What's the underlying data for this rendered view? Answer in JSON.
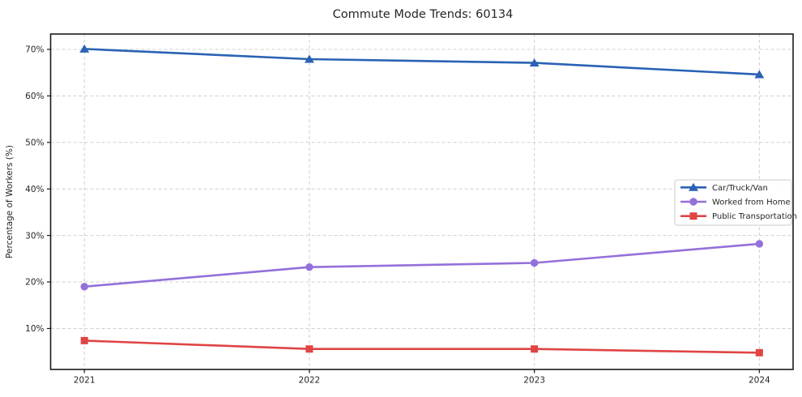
{
  "title": "Commute Mode Trends: 60134",
  "chart_data": {
    "type": "line",
    "title": "Commute Mode Trends: 60134",
    "xlabel": "",
    "ylabel": "Percentage of Workers (%)",
    "x": [
      2021,
      2022,
      2023,
      2024
    ],
    "categories": [
      "2021",
      "2022",
      "2023",
      "2024"
    ],
    "series": [
      {
        "name": "Car/Truck/Van",
        "values": [
          70.1,
          67.9,
          67.1,
          64.6
        ],
        "color": "#2a62b4",
        "marker": "triangle"
      },
      {
        "name": "Worked from Home",
        "values": [
          19.0,
          23.2,
          24.1,
          28.2
        ],
        "color": "#9370db",
        "marker": "circle"
      },
      {
        "name": "Public Transportation",
        "values": [
          7.4,
          5.6,
          5.6,
          4.8
        ],
        "color": "#e04444",
        "marker": "square"
      }
    ],
    "yticks": [
      10,
      20,
      30,
      40,
      50,
      60,
      70
    ],
    "ytick_labels": [
      "10%",
      "20%",
      "30%",
      "40%",
      "50%",
      "60%",
      "70%"
    ],
    "xlim": [
      2020.85,
      2024.15
    ],
    "ylim": [
      1.2,
      73.3
    ],
    "grid": true,
    "grid_style": "dashed",
    "legend_position": "center right"
  },
  "colors": {
    "background": "#ffffff",
    "grid": "#cfcfcf",
    "spine": "#1a1a1a",
    "tick_text": "#262626",
    "legend_border": "#cccccc",
    "legend_background": "#ffffff"
  }
}
